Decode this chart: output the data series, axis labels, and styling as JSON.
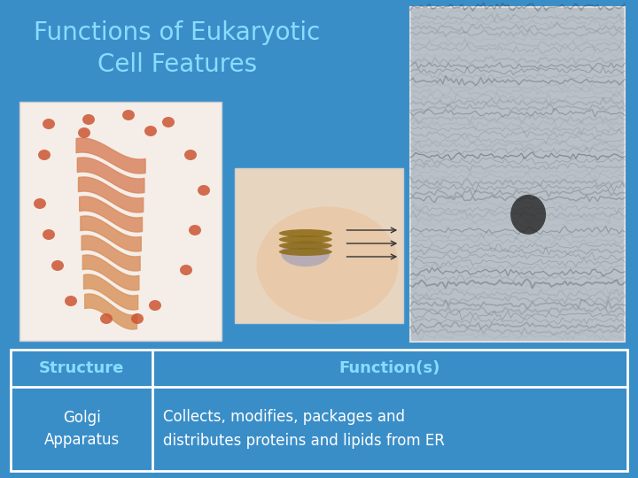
{
  "title": "Functions of Eukaryotic\nCell Features",
  "title_color": "#88DDFF",
  "title_fontsize": 20,
  "background_color": "#3A8EC8",
  "table_header": [
    "Structure",
    "Function(s)"
  ],
  "table_row_col1": "Golgi\nApparatus",
  "table_row_col2": "Collects, modifies, packages and\ndistributes proteins and lipids from ER",
  "border_color": "#FFFFFF",
  "header_text_color": "#88DDFF",
  "row_text_color": "#FFFFFF",
  "table_fontsize": 12,
  "header_fontsize": 13,
  "img1_color": "#F5EEE8",
  "img2_color": "#E8D5C0",
  "img3_color": "#B0B8C0"
}
